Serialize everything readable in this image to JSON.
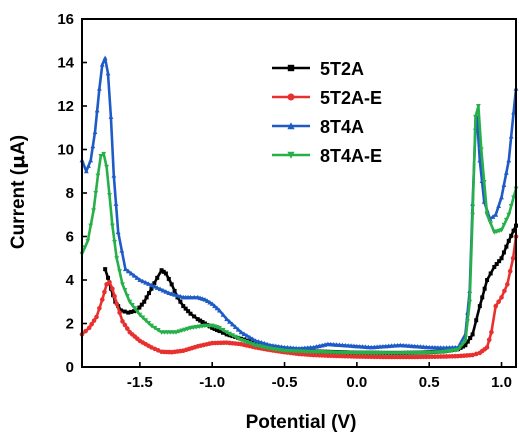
{
  "chart_data": {
    "type": "line",
    "xlabel": "Potential (V)",
    "ylabel_prefix": "Current (",
    "ylabel_symbol": "μ",
    "ylabel_suffix": "A)",
    "xlim": [
      -1.9,
      1.1
    ],
    "ylim": [
      0,
      16
    ],
    "xticks": [
      -1.5,
      -1.0,
      -0.5,
      0.0,
      0.5,
      1.0
    ],
    "xtick_labels": [
      "-1.5",
      "-1.0",
      "-0.5",
      "0.0",
      "0.5",
      "1.0"
    ],
    "yticks": [
      0,
      2,
      4,
      6,
      8,
      10,
      12,
      14,
      16
    ],
    "ytick_labels": [
      "0",
      "2",
      "4",
      "6",
      "8",
      "10",
      "12",
      "14",
      "16"
    ],
    "grid": false,
    "legend_position": "top-right",
    "series": [
      {
        "name": "5T2A",
        "color": "#000000",
        "marker": "square",
        "x": [
          -1.74,
          -1.72,
          -1.7,
          -1.67,
          -1.63,
          -1.58,
          -1.52,
          -1.47,
          -1.42,
          -1.38,
          -1.35,
          -1.32,
          -1.28,
          -1.24,
          -1.2,
          -1.15,
          -1.1,
          -1.05,
          -1.0,
          -0.95,
          -0.9,
          -0.8,
          -0.7,
          -0.6,
          -0.5,
          -0.4,
          -0.3,
          -0.2,
          -0.1,
          0.0,
          0.1,
          0.2,
          0.3,
          0.4,
          0.5,
          0.6,
          0.7,
          0.75,
          0.8,
          0.85,
          0.9,
          0.95,
          1.0,
          1.05,
          1.1
        ],
        "y": [
          4.5,
          4.1,
          3.6,
          3.0,
          2.6,
          2.5,
          2.6,
          3.0,
          3.6,
          4.1,
          4.45,
          4.3,
          3.8,
          3.2,
          2.8,
          2.45,
          2.2,
          2.0,
          1.8,
          1.65,
          1.5,
          1.3,
          1.1,
          0.95,
          0.85,
          0.78,
          0.72,
          0.7,
          0.68,
          0.66,
          0.66,
          0.65,
          0.65,
          0.66,
          0.68,
          0.72,
          0.82,
          1.0,
          1.5,
          2.8,
          4.0,
          4.6,
          5.0,
          5.8,
          6.5
        ]
      },
      {
        "name": "5T2A-E",
        "color": "#e8312f",
        "marker": "circle",
        "x": [
          -1.9,
          -1.85,
          -1.8,
          -1.76,
          -1.73,
          -1.71,
          -1.69,
          -1.66,
          -1.62,
          -1.57,
          -1.5,
          -1.42,
          -1.35,
          -1.28,
          -1.2,
          -1.1,
          -1.0,
          -0.9,
          -0.8,
          -0.7,
          -0.6,
          -0.5,
          -0.4,
          -0.3,
          -0.2,
          -0.1,
          0.0,
          0.1,
          0.2,
          0.3,
          0.4,
          0.5,
          0.6,
          0.7,
          0.8,
          0.85,
          0.9,
          0.93,
          0.96,
          1.0,
          1.04,
          1.08,
          1.1
        ],
        "y": [
          1.5,
          1.8,
          2.3,
          3.1,
          3.8,
          3.9,
          3.6,
          2.9,
          2.1,
          1.6,
          1.2,
          0.9,
          0.7,
          0.68,
          0.75,
          0.95,
          1.1,
          1.12,
          1.05,
          0.9,
          0.78,
          0.68,
          0.6,
          0.55,
          0.52,
          0.5,
          0.48,
          0.47,
          0.46,
          0.46,
          0.46,
          0.47,
          0.48,
          0.5,
          0.55,
          0.65,
          0.9,
          1.6,
          2.8,
          3.2,
          3.8,
          5.0,
          6.0
        ]
      },
      {
        "name": "8T4A",
        "color": "#1f5bc6",
        "marker": "triangle-up",
        "x": [
          -1.9,
          -1.87,
          -1.84,
          -1.81,
          -1.78,
          -1.76,
          -1.74,
          -1.72,
          -1.7,
          -1.68,
          -1.65,
          -1.6,
          -1.5,
          -1.4,
          -1.3,
          -1.2,
          -1.15,
          -1.1,
          -1.05,
          -1.0,
          -0.95,
          -0.9,
          -0.8,
          -0.7,
          -0.6,
          -0.5,
          -0.4,
          -0.3,
          -0.2,
          -0.1,
          0.0,
          0.1,
          0.2,
          0.3,
          0.4,
          0.5,
          0.6,
          0.7,
          0.75,
          0.78,
          0.8,
          0.82,
          0.83,
          0.85,
          0.88,
          0.92,
          0.96,
          1.0,
          1.05,
          1.1
        ],
        "y": [
          9.5,
          9.0,
          9.5,
          10.8,
          12.8,
          13.9,
          14.2,
          13.5,
          11.5,
          8.8,
          6.2,
          4.5,
          4.0,
          3.7,
          3.4,
          3.2,
          3.2,
          3.2,
          3.1,
          2.9,
          2.6,
          2.2,
          1.6,
          1.2,
          1.0,
          0.9,
          0.85,
          0.9,
          1.05,
          1.0,
          0.95,
          0.9,
          0.95,
          1.0,
          0.95,
          0.9,
          0.88,
          0.9,
          1.5,
          3.5,
          7.5,
          11.0,
          11.5,
          9.5,
          7.6,
          6.8,
          7.0,
          7.8,
          9.5,
          12.8
        ]
      },
      {
        "name": "8T4A-E",
        "color": "#27b04a",
        "marker": "triangle-down",
        "x": [
          -1.9,
          -1.86,
          -1.82,
          -1.79,
          -1.77,
          -1.75,
          -1.73,
          -1.71,
          -1.69,
          -1.66,
          -1.62,
          -1.57,
          -1.5,
          -1.42,
          -1.35,
          -1.25,
          -1.15,
          -1.05,
          -1.0,
          -0.95,
          -0.9,
          -0.8,
          -0.7,
          -0.6,
          -0.5,
          -0.4,
          -0.3,
          -0.2,
          -0.1,
          0.0,
          0.1,
          0.2,
          0.3,
          0.4,
          0.5,
          0.6,
          0.7,
          0.75,
          0.78,
          0.8,
          0.82,
          0.84,
          0.86,
          0.9,
          0.95,
          1.0,
          1.05,
          1.1
        ],
        "y": [
          5.2,
          5.8,
          7.2,
          8.8,
          9.7,
          9.8,
          9.2,
          7.9,
          6.5,
          5.0,
          3.8,
          3.0,
          2.4,
          1.9,
          1.6,
          1.6,
          1.8,
          1.9,
          1.9,
          1.8,
          1.6,
          1.25,
          1.0,
          0.85,
          0.75,
          0.72,
          0.7,
          0.68,
          0.66,
          0.65,
          0.65,
          0.64,
          0.64,
          0.65,
          0.66,
          0.7,
          0.8,
          1.2,
          3.0,
          7.0,
          11.5,
          12.0,
          10.0,
          7.0,
          6.2,
          6.3,
          7.0,
          8.2
        ]
      }
    ]
  }
}
